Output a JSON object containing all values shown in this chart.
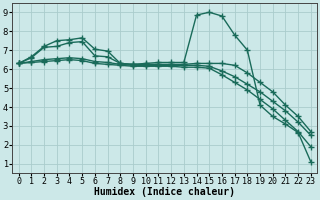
{
  "background_color": "#cce8e8",
  "grid_color": "#aacccc",
  "line_color": "#1a6b5a",
  "line_width": 1.0,
  "marker": "+",
  "markersize": 4,
  "markeredgewidth": 1.0,
  "xlabel": "Humidex (Indice chaleur)",
  "xlabel_fontsize": 7,
  "tick_fontsize": 6,
  "xlim": [
    -0.5,
    23.5
  ],
  "ylim": [
    0.5,
    9.5
  ],
  "xticks": [
    0,
    1,
    2,
    3,
    4,
    5,
    6,
    7,
    8,
    9,
    10,
    11,
    12,
    13,
    14,
    15,
    16,
    17,
    18,
    19,
    20,
    21,
    22,
    23
  ],
  "yticks": [
    1,
    2,
    3,
    4,
    5,
    6,
    7,
    8,
    9
  ],
  "lines": [
    [
      [
        0,
        6.3
      ],
      [
        1,
        6.65
      ],
      [
        2,
        7.2
      ],
      [
        3,
        7.5
      ],
      [
        4,
        7.55
      ],
      [
        5,
        7.65
      ],
      [
        6,
        7.05
      ],
      [
        7,
        6.95
      ],
      [
        8,
        6.3
      ],
      [
        9,
        6.25
      ],
      [
        10,
        6.3
      ],
      [
        11,
        6.35
      ],
      [
        12,
        6.35
      ],
      [
        13,
        6.35
      ],
      [
        14,
        8.85
      ],
      [
        15,
        9.0
      ],
      [
        16,
        8.8
      ],
      [
        17,
        7.8
      ],
      [
        18,
        7.0
      ],
      [
        19,
        4.1
      ],
      [
        20,
        3.5
      ],
      [
        21,
        3.1
      ],
      [
        22,
        2.65
      ],
      [
        23,
        1.1
      ]
    ],
    [
      [
        0,
        6.3
      ],
      [
        1,
        6.6
      ],
      [
        2,
        7.15
      ],
      [
        3,
        7.2
      ],
      [
        4,
        7.4
      ],
      [
        5,
        7.45
      ],
      [
        6,
        6.7
      ],
      [
        7,
        6.65
      ],
      [
        8,
        6.3
      ],
      [
        9,
        6.25
      ],
      [
        10,
        6.25
      ],
      [
        11,
        6.25
      ],
      [
        12,
        6.25
      ],
      [
        13,
        6.25
      ],
      [
        14,
        6.3
      ],
      [
        15,
        6.3
      ],
      [
        16,
        6.3
      ],
      [
        17,
        6.2
      ],
      [
        18,
        5.8
      ],
      [
        19,
        5.3
      ],
      [
        20,
        4.8
      ],
      [
        21,
        4.1
      ],
      [
        22,
        3.5
      ],
      [
        23,
        2.7
      ]
    ],
    [
      [
        0,
        6.3
      ],
      [
        1,
        6.4
      ],
      [
        2,
        6.5
      ],
      [
        3,
        6.55
      ],
      [
        4,
        6.6
      ],
      [
        5,
        6.55
      ],
      [
        6,
        6.4
      ],
      [
        7,
        6.35
      ],
      [
        8,
        6.25
      ],
      [
        9,
        6.2
      ],
      [
        10,
        6.2
      ],
      [
        11,
        6.2
      ],
      [
        12,
        6.2
      ],
      [
        13,
        6.2
      ],
      [
        14,
        6.2
      ],
      [
        15,
        6.15
      ],
      [
        16,
        5.9
      ],
      [
        17,
        5.6
      ],
      [
        18,
        5.2
      ],
      [
        19,
        4.8
      ],
      [
        20,
        4.3
      ],
      [
        21,
        3.8
      ],
      [
        22,
        3.2
      ],
      [
        23,
        2.5
      ]
    ],
    [
      [
        0,
        6.3
      ],
      [
        1,
        6.35
      ],
      [
        2,
        6.4
      ],
      [
        3,
        6.45
      ],
      [
        4,
        6.5
      ],
      [
        5,
        6.45
      ],
      [
        6,
        6.3
      ],
      [
        7,
        6.25
      ],
      [
        8,
        6.2
      ],
      [
        9,
        6.15
      ],
      [
        10,
        6.15
      ],
      [
        11,
        6.15
      ],
      [
        12,
        6.15
      ],
      [
        13,
        6.1
      ],
      [
        14,
        6.1
      ],
      [
        15,
        6.05
      ],
      [
        16,
        5.7
      ],
      [
        17,
        5.3
      ],
      [
        18,
        4.9
      ],
      [
        19,
        4.4
      ],
      [
        20,
        3.9
      ],
      [
        21,
        3.3
      ],
      [
        22,
        2.7
      ],
      [
        23,
        1.9
      ]
    ]
  ]
}
